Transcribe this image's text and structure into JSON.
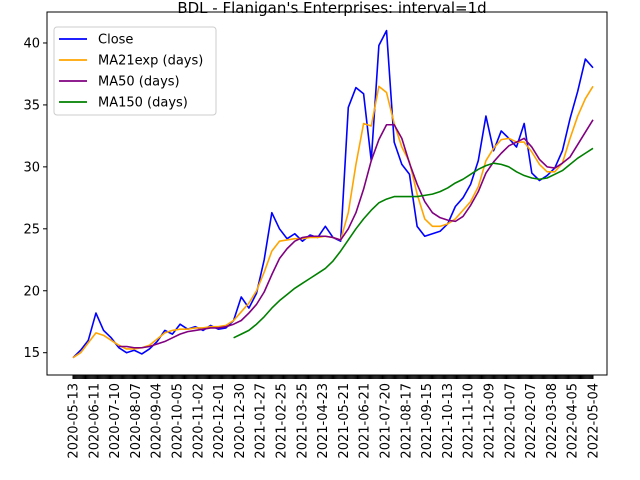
{
  "chart_data": {
    "type": "line",
    "title": "BDL - Flanigan's Enterprises: interval=1d",
    "xlabel": "",
    "ylabel": "",
    "ylim": [
      13.2,
      42.5
    ],
    "yticks": [
      15,
      20,
      25,
      30,
      35,
      40
    ],
    "x_tick_labels": [
      "2020-05-13",
      "2020-06-11",
      "2020-07-10",
      "2020-08-07",
      "2020-09-04",
      "2020-10-05",
      "2020-11-02",
      "2020-12-01",
      "2020-12-30",
      "2021-01-27",
      "2021-02-25",
      "2021-03-25",
      "2021-04-23",
      "2021-05-21",
      "2021-06-21",
      "2021-07-20",
      "2021-08-17",
      "2021-09-15",
      "2021-10-13",
      "2021-11-10",
      "2021-12-09",
      "2022-01-07",
      "2022-02-07",
      "2022-03-08",
      "2022-04-05",
      "2022-05-04"
    ],
    "grid": false,
    "legend_position": "top-left",
    "series": [
      {
        "name": "Close",
        "color": "#0000ff",
        "values": [
          14.6,
          15.2,
          16.0,
          18.2,
          16.8,
          16.2,
          15.4,
          15.0,
          15.2,
          14.9,
          15.3,
          15.9,
          16.8,
          16.5,
          17.3,
          16.9,
          17.1,
          16.8,
          17.2,
          16.9,
          17.0,
          17.6,
          19.5,
          18.6,
          19.8,
          22.5,
          26.3,
          25.0,
          24.2,
          24.6,
          24.0,
          24.5,
          24.3,
          25.2,
          24.3,
          24.0,
          34.8,
          36.4,
          35.9,
          30.5,
          39.8,
          41.0,
          32.0,
          30.2,
          29.4,
          25.2,
          24.4,
          24.6,
          24.8,
          25.4,
          26.8,
          27.5,
          28.6,
          30.5,
          34.1,
          31.3,
          32.9,
          32.3,
          31.6,
          33.5,
          29.5,
          28.9,
          29.3,
          29.9,
          31.3,
          33.9,
          36.1,
          38.7,
          38.0
        ]
      },
      {
        "name": "MA21exp (days)",
        "color": "#ffa500",
        "values": [
          14.6,
          15.0,
          15.8,
          16.6,
          16.4,
          16.0,
          15.6,
          15.3,
          15.3,
          15.4,
          15.6,
          16.1,
          16.6,
          16.8,
          16.9,
          16.9,
          17.0,
          17.0,
          17.1,
          17.1,
          17.2,
          17.6,
          18.3,
          19.0,
          20.0,
          21.5,
          23.2,
          24.0,
          24.1,
          24.2,
          24.2,
          24.3,
          24.3,
          24.4,
          24.3,
          24.1,
          26.3,
          30.2,
          33.5,
          33.3,
          36.5,
          36.0,
          33.5,
          31.6,
          30.4,
          27.8,
          25.8,
          25.2,
          25.2,
          25.4,
          25.8,
          26.5,
          27.2,
          28.4,
          30.5,
          31.5,
          32.2,
          32.3,
          32.0,
          32.0,
          31.2,
          30.2,
          29.6,
          29.6,
          30.3,
          32.3,
          34.1,
          35.5,
          36.5
        ]
      },
      {
        "name": "MA50 (days)",
        "color": "#800080",
        "values": [
          null,
          null,
          null,
          null,
          null,
          null,
          15.5,
          15.5,
          15.4,
          15.4,
          15.5,
          15.7,
          15.9,
          16.2,
          16.5,
          16.7,
          16.8,
          16.9,
          17.0,
          17.0,
          17.1,
          17.3,
          17.6,
          18.2,
          18.9,
          19.9,
          21.3,
          22.6,
          23.4,
          24.0,
          24.3,
          24.4,
          24.4,
          24.4,
          24.3,
          24.1,
          25.0,
          26.3,
          28.2,
          30.5,
          32.2,
          33.4,
          33.4,
          32.3,
          30.3,
          28.6,
          27.2,
          26.3,
          25.9,
          25.7,
          25.6,
          26.0,
          26.9,
          28.0,
          29.5,
          30.4,
          31.1,
          31.7,
          32.0,
          32.3,
          31.6,
          30.6,
          30.0,
          29.9,
          30.3,
          30.8,
          31.8,
          32.8,
          33.8
        ]
      },
      {
        "name": "MA150 (days)",
        "color": "#008000",
        "values": [
          null,
          null,
          null,
          null,
          null,
          null,
          null,
          null,
          null,
          null,
          null,
          null,
          null,
          null,
          null,
          null,
          null,
          null,
          null,
          null,
          null,
          16.2,
          16.5,
          16.8,
          17.3,
          17.9,
          18.6,
          19.2,
          19.7,
          20.2,
          20.6,
          21.0,
          21.4,
          21.8,
          22.4,
          23.2,
          24.1,
          25.0,
          25.8,
          26.5,
          27.1,
          27.4,
          27.6,
          27.6,
          27.6,
          27.6,
          27.7,
          27.8,
          28.0,
          28.3,
          28.7,
          29.0,
          29.4,
          29.8,
          30.1,
          30.3,
          30.2,
          30.0,
          29.6,
          29.3,
          29.1,
          29.0,
          29.1,
          29.4,
          29.7,
          30.2,
          30.7,
          31.1,
          31.5
        ]
      }
    ]
  }
}
